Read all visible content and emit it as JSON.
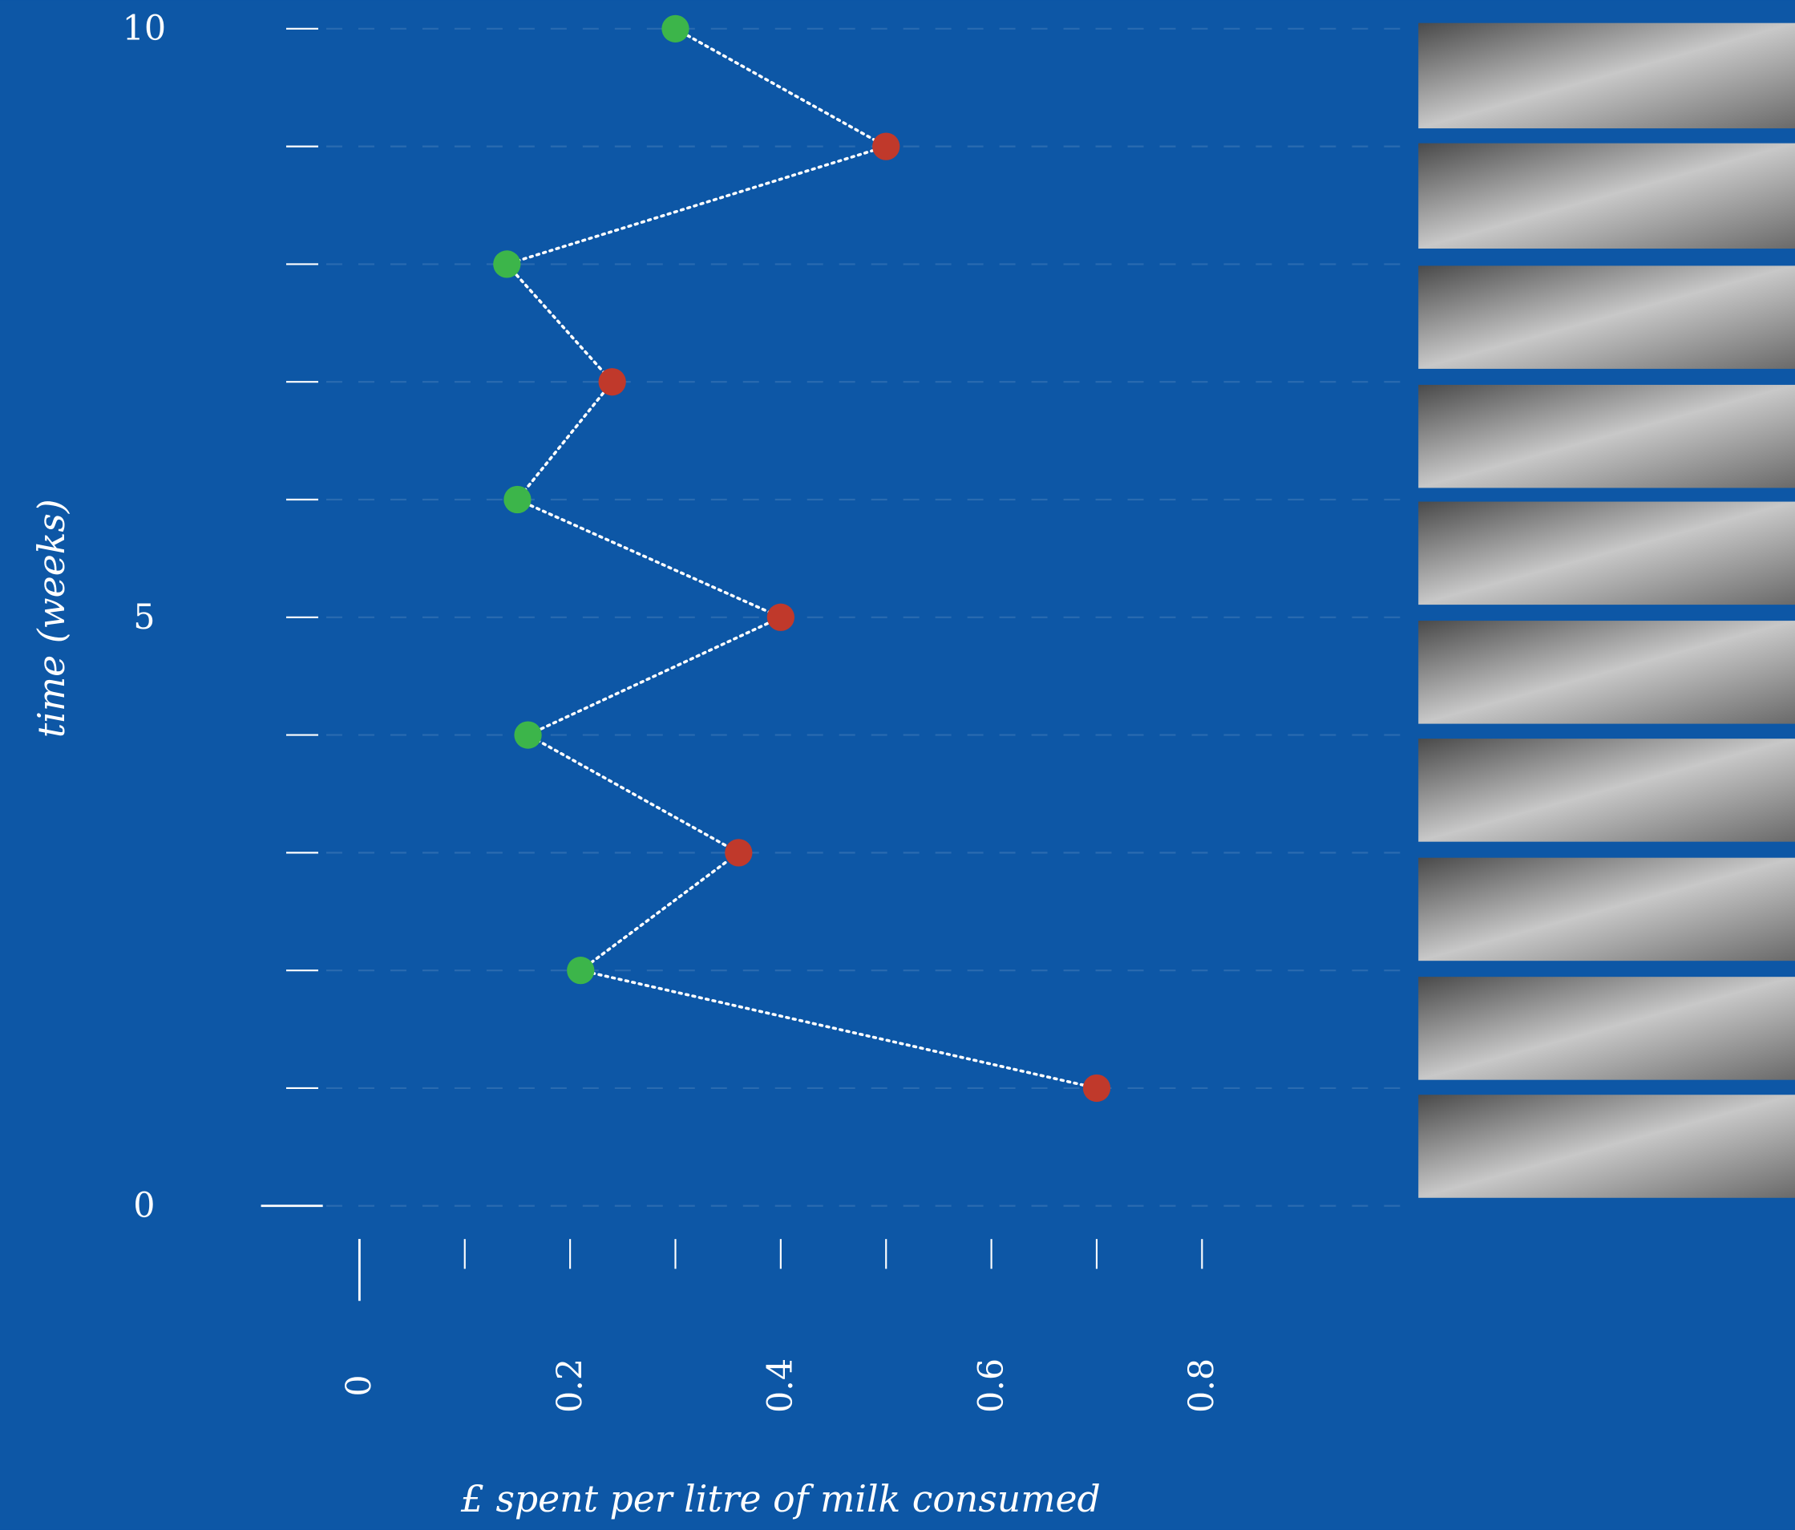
{
  "chart_data": {
    "type": "line",
    "x_label": "£ spent per litre of milk consumed",
    "y_label": "time (weeks)",
    "x": [
      0.7,
      0.21,
      0.36,
      0.16,
      0.4,
      0.15,
      0.24,
      0.14,
      0.5,
      0.3
    ],
    "y": [
      1,
      2,
      3,
      4,
      5,
      6,
      7,
      8,
      9,
      10
    ],
    "point_colors": [
      "#c0392b",
      "#3cb54a",
      "#c0392b",
      "#3cb54a",
      "#c0392b",
      "#3cb54a",
      "#c0392b",
      "#3cb54a",
      "#c0392b",
      "#3cb54a"
    ],
    "line_color": "#ffffff",
    "xlim": [
      0,
      0.8
    ],
    "xticks": [
      0,
      0.2,
      0.4,
      0.6,
      0.8
    ],
    "xminor_ticks": [
      0.1,
      0.3,
      0.5,
      0.7
    ],
    "ylim": [
      0,
      10
    ],
    "yticks": [
      0,
      5,
      10
    ],
    "yminor_ticks": [
      1,
      2,
      3,
      4,
      6,
      7,
      8,
      9
    ],
    "grid": true
  }
}
